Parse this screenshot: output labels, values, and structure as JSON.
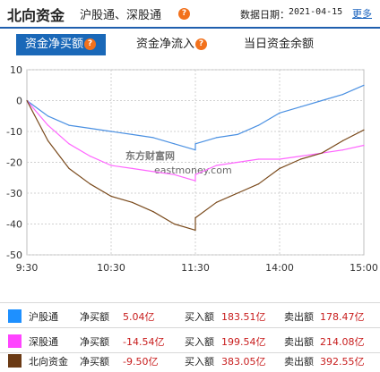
{
  "header": {
    "title": "北向资金",
    "subtitle": "沪股通、深股通",
    "help_icon": "question-icon",
    "date_label": "数据日期：",
    "date_value": "2021-04-15",
    "more_link": "更多",
    "accent": "#1f5fae"
  },
  "tabs": [
    {
      "label": "资金净买额",
      "active": true,
      "has_help": true
    },
    {
      "label": "资金净流入",
      "active": false,
      "has_help": true
    },
    {
      "label": "当日资金余额",
      "active": false,
      "has_help": false
    }
  ],
  "watermark": {
    "main": "东方财富网",
    "sub": "eastmoney.com"
  },
  "chart_data": {
    "type": "line",
    "title": "",
    "xlabel": "",
    "ylabel": "",
    "x_ticks": [
      "9:30",
      "10:30",
      "11:30",
      "14:00",
      "15:00"
    ],
    "y_ticks": [
      "10",
      "0",
      "-10",
      "-20",
      "-30",
      "-40",
      "-50"
    ],
    "ylim": [
      -50,
      10
    ],
    "grid": true,
    "x": [
      "9:30",
      "9:45",
      "10:00",
      "10:15",
      "10:30",
      "10:45",
      "11:00",
      "11:15",
      "11:30",
      "13:00",
      "13:15",
      "13:30",
      "13:45",
      "14:00",
      "14:15",
      "14:30",
      "14:45",
      "15:00"
    ],
    "series": [
      {
        "name": "沪股通",
        "color": "#4a90e2",
        "values": [
          0,
          -5,
          -8,
          -9,
          -10,
          -11,
          -12,
          -14,
          -16,
          -14,
          -12,
          -11,
          -8,
          -4,
          -2,
          0,
          2,
          5
        ]
      },
      {
        "name": "深股通",
        "color": "#ff66ff",
        "values": [
          0,
          -8,
          -14,
          -18,
          -21,
          -22,
          -23,
          -24,
          -26,
          -24,
          -21,
          -20,
          -19,
          -19,
          -18,
          -17,
          -16,
          -14.5
        ]
      },
      {
        "name": "北向资金",
        "color": "#7a4a1c",
        "values": [
          0,
          -13,
          -22,
          -27,
          -31,
          -33,
          -36,
          -40,
          -42,
          -38,
          -33,
          -30,
          -27,
          -22,
          -19,
          -17,
          -13,
          -9.5
        ]
      }
    ]
  },
  "legend": [
    {
      "name": "沪股通",
      "color": "#1e90ff",
      "k_net": "净买额",
      "v_net": "5.04亿",
      "k_buy": "买入额",
      "v_buy": "183.51亿",
      "k_sell": "卖出额",
      "v_sell": "178.47亿"
    },
    {
      "name": "深股通",
      "color": "#ff44ff",
      "k_net": "净买额",
      "v_net": "-14.54亿",
      "k_buy": "买入额",
      "v_buy": "199.54亿",
      "k_sell": "卖出额",
      "v_sell": "214.08亿"
    },
    {
      "name": "北向资金",
      "color": "#6b3a14",
      "k_net": "净买额",
      "v_net": "-9.50亿",
      "k_buy": "买入额",
      "v_buy": "383.05亿",
      "k_sell": "卖出额",
      "v_sell": "392.55亿"
    }
  ]
}
